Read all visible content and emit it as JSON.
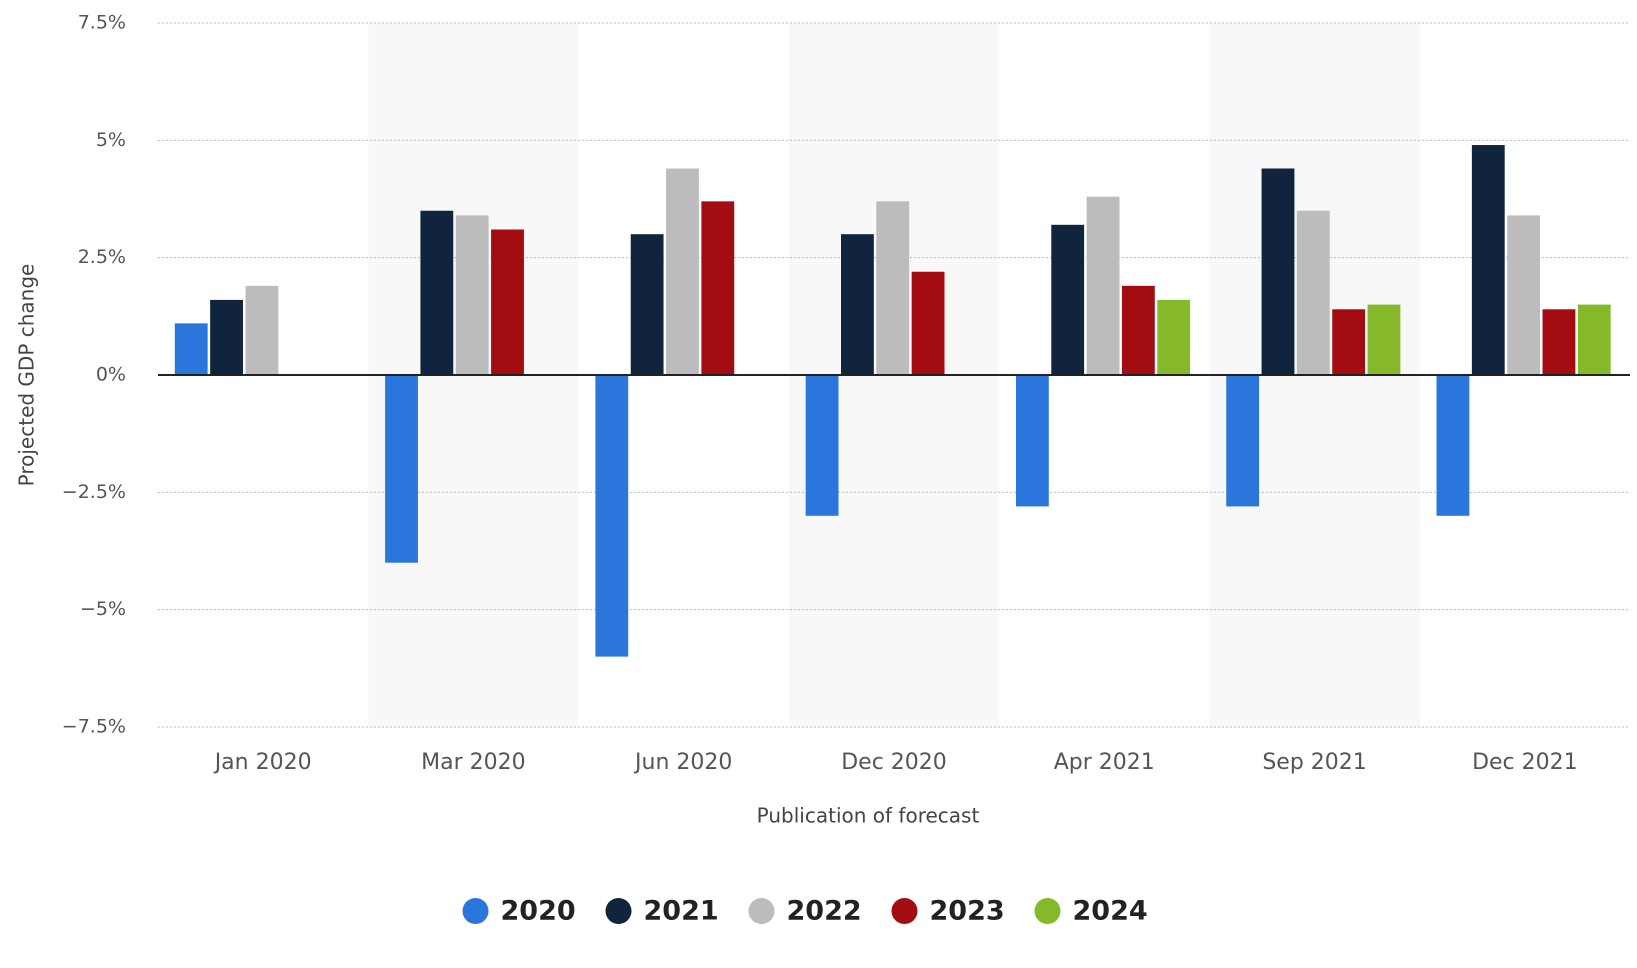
{
  "chart_data": {
    "type": "bar",
    "x_label": "Publication of forecast",
    "y_label": "Projected GDP change",
    "categories": [
      "Jan 2020",
      "Mar 2020",
      "Jun 2020",
      "Dec 2020",
      "Apr 2021",
      "Sep 2021",
      "Dec 2021"
    ],
    "series": [
      {
        "name": "2020",
        "color": "#2a76dd",
        "values": [
          1.1,
          -4.0,
          -6.0,
          -3.0,
          -2.8,
          -2.8,
          -3.0
        ]
      },
      {
        "name": "2021",
        "color": "#10253d",
        "values": [
          1.6,
          3.5,
          3.0,
          3.0,
          3.2,
          4.4,
          4.9
        ]
      },
      {
        "name": "2022",
        "color": "#bcbcbc",
        "values": [
          1.9,
          3.4,
          4.4,
          3.7,
          3.8,
          3.5,
          3.4
        ]
      },
      {
        "name": "2023",
        "color": "#a30c10",
        "values": [
          null,
          3.1,
          3.7,
          2.2,
          1.9,
          1.4,
          1.4
        ]
      },
      {
        "name": "2024",
        "color": "#86b92a",
        "values": [
          null,
          null,
          null,
          null,
          1.6,
          1.5,
          1.5
        ]
      }
    ],
    "ylim": [
      -7.5,
      7.5
    ],
    "yticks": [
      {
        "value": -7.5,
        "label": "−7.5%"
      },
      {
        "value": -5,
        "label": "−5%"
      },
      {
        "value": -2.5,
        "label": "−2.5%"
      },
      {
        "value": 0,
        "label": "0%"
      },
      {
        "value": 2.5,
        "label": "2.5%"
      },
      {
        "value": 5,
        "label": "5%"
      },
      {
        "value": 7.5,
        "label": "7.5%"
      }
    ],
    "grid": true
  }
}
